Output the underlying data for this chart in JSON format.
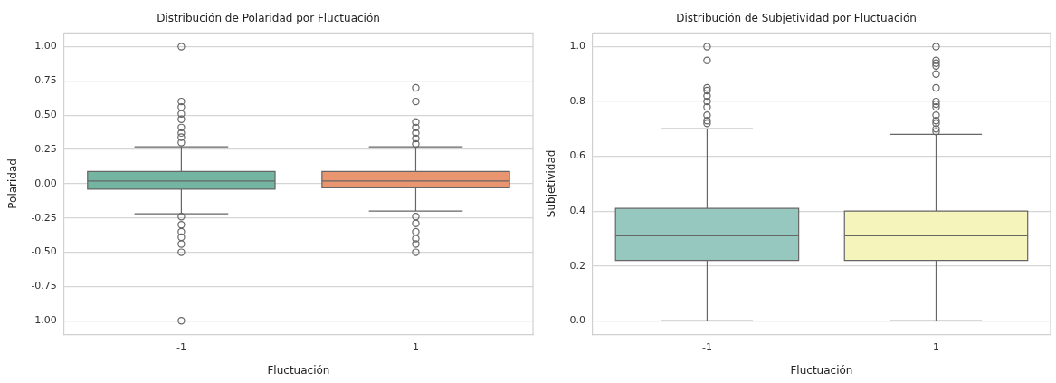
{
  "chart_data": [
    {
      "type": "box",
      "title": "Distribución de Polaridad por Fluctuación",
      "xlabel": "Fluctuación",
      "ylabel": "Polaridad",
      "categories": [
        "-1",
        "1"
      ],
      "colors": [
        "#73b5a0",
        "#e9956f"
      ],
      "boxes": [
        {
          "low": -0.22,
          "q1": -0.04,
          "median": 0.02,
          "q3": 0.09,
          "high": 0.27,
          "outliers": [
            1.0,
            0.6,
            0.56,
            0.51,
            0.47,
            0.41,
            0.37,
            0.34,
            0.3,
            -0.24,
            -0.3,
            -0.35,
            -0.39,
            -0.44,
            -0.5,
            -1.0
          ]
        },
        {
          "low": -0.2,
          "q1": -0.03,
          "median": 0.02,
          "q3": 0.09,
          "high": 0.27,
          "outliers": [
            0.7,
            0.6,
            0.45,
            0.41,
            0.37,
            0.33,
            0.29,
            -0.24,
            -0.29,
            -0.35,
            -0.4,
            -0.44,
            -0.5
          ]
        }
      ],
      "ylim": [
        -1.1,
        1.1
      ],
      "yticks": [
        {
          "value": -1,
          "label": "-1.00"
        },
        {
          "value": -0.75,
          "label": "-0.75"
        },
        {
          "value": -0.5,
          "label": "-0.50"
        },
        {
          "value": -0.25,
          "label": "-0.25"
        },
        {
          "value": 0,
          "label": "0.00"
        },
        {
          "value": 0.25,
          "label": "0.25"
        },
        {
          "value": 0.5,
          "label": "0.50"
        },
        {
          "value": 0.75,
          "label": "0.75"
        },
        {
          "value": 1,
          "label": "1.00"
        }
      ],
      "grid": "y"
    },
    {
      "type": "box",
      "title": "Distribución de Subjetividad por Fluctuación",
      "xlabel": "Fluctuación",
      "ylabel": "Subjetividad",
      "categories": [
        "-1",
        "1"
      ],
      "colors": [
        "#96c8c0",
        "#f5f5bb"
      ],
      "boxes": [
        {
          "low": 0,
          "q1": 0.22,
          "median": 0.31,
          "q3": 0.41,
          "high": 0.7,
          "outliers": [
            1.0,
            0.95,
            0.85,
            0.84,
            0.82,
            0.8,
            0.78,
            0.75,
            0.73,
            0.72
          ]
        },
        {
          "low": 0,
          "q1": 0.22,
          "median": 0.31,
          "q3": 0.4,
          "high": 0.68,
          "outliers": [
            1.0,
            0.95,
            0.94,
            0.93,
            0.9,
            0.85,
            0.8,
            0.79,
            0.78,
            0.75,
            0.73,
            0.72,
            0.7,
            0.69
          ]
        }
      ],
      "ylim": [
        -0.05,
        1.05
      ],
      "yticks": [
        {
          "value": 0,
          "label": "0.0"
        },
        {
          "value": 0.2,
          "label": "0.2"
        },
        {
          "value": 0.4,
          "label": "0.4"
        },
        {
          "value": 0.6,
          "label": "0.6"
        },
        {
          "value": 0.8,
          "label": "0.8"
        },
        {
          "value": 1,
          "label": "1.0"
        }
      ],
      "grid": "y"
    }
  ]
}
